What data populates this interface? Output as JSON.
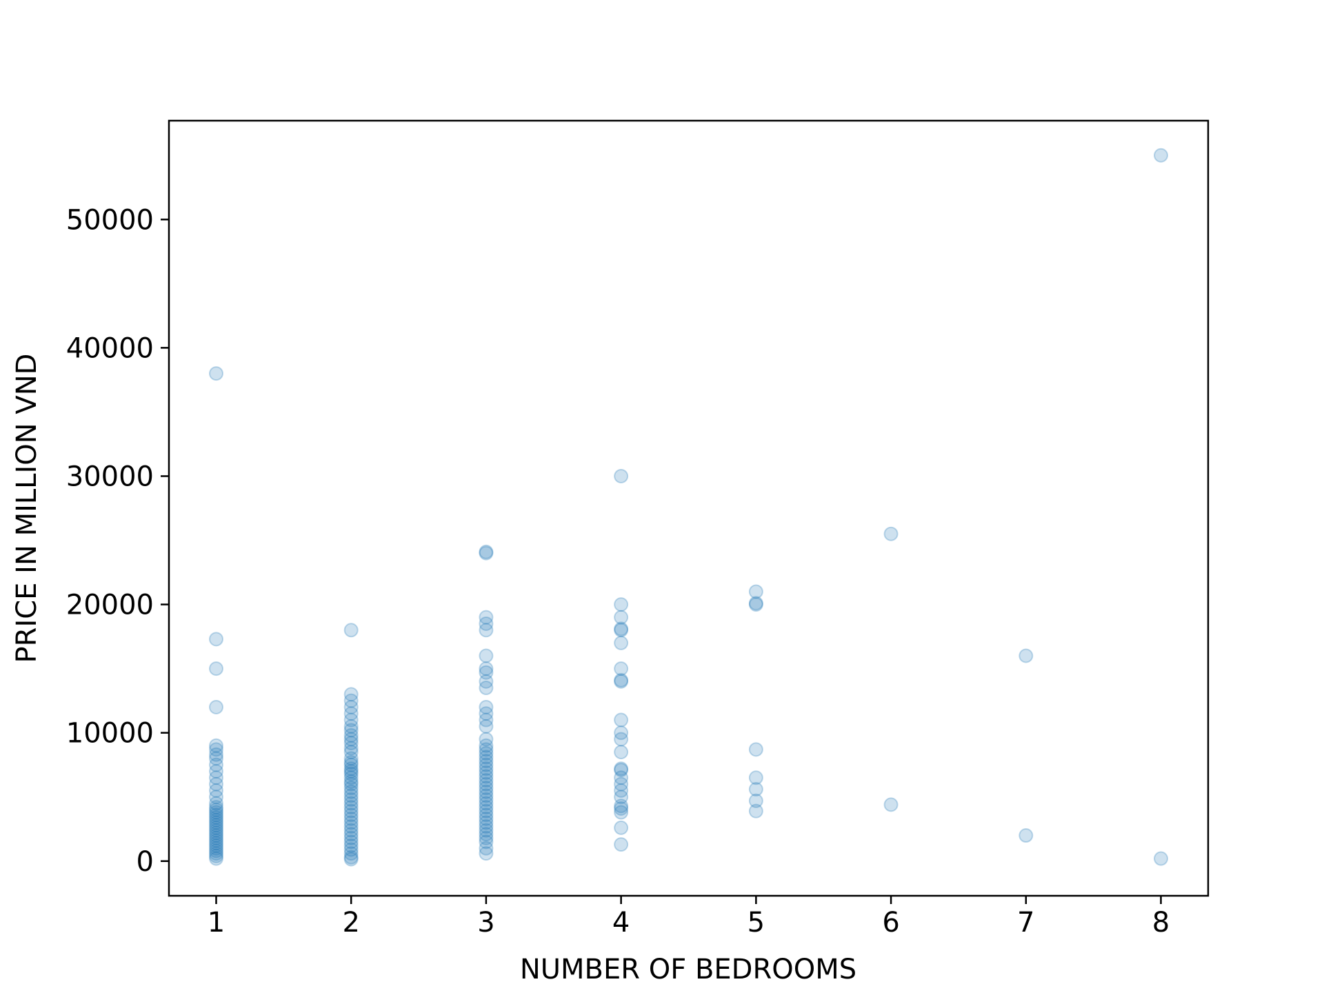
{
  "chart_data": {
    "type": "scatter",
    "title": "",
    "xlabel": "NUMBER OF BEDROOMS",
    "ylabel": "PRICE IN MILLION VND",
    "xlim": [
      0.65,
      8.35
    ],
    "ylim": [
      -2700,
      57700
    ],
    "x_ticks": [
      1,
      2,
      3,
      4,
      5,
      6,
      7,
      8
    ],
    "y_ticks": [
      0,
      10000,
      20000,
      30000,
      40000,
      50000
    ],
    "grid": false,
    "legend": "none",
    "marker_color": "#1f77b4",
    "marker_alpha": 0.22,
    "points": [
      {
        "x": 1,
        "y": [
          38000,
          17300,
          15000,
          12000,
          9000,
          8700,
          8300,
          8000,
          7500,
          7000,
          6500,
          6000,
          5500,
          5000,
          4500,
          4200,
          4000,
          3800,
          3600,
          3400,
          3200,
          3000,
          2800,
          2600,
          2400,
          2200,
          2000,
          1800,
          1600,
          1400,
          1200,
          1000,
          800,
          600,
          400,
          200
        ]
      },
      {
        "x": 2,
        "y": [
          18000,
          13000,
          12500,
          12000,
          11500,
          11000,
          10500,
          10200,
          9800,
          9500,
          9200,
          8800,
          8500,
          8000,
          7700,
          7500,
          7200,
          7000,
          6800,
          6500,
          6200,
          6000,
          5700,
          5400,
          5100,
          4800,
          4500,
          4200,
          3900,
          3600,
          3300,
          3000,
          2700,
          2400,
          2100,
          1800,
          1500,
          1200,
          900,
          600,
          300,
          150
        ]
      },
      {
        "x": 3,
        "y": [
          24100,
          24000,
          19000,
          18500,
          18000,
          16000,
          15000,
          14700,
          14000,
          13500,
          12000,
          11500,
          11000,
          10500,
          9500,
          9000,
          8700,
          8400,
          8100,
          7800,
          7500,
          7200,
          6900,
          6600,
          6300,
          6000,
          5700,
          5400,
          5100,
          4800,
          4500,
          4200,
          3900,
          3600,
          3300,
          3000,
          2700,
          2400,
          2100,
          1800,
          1500,
          1000,
          600
        ]
      },
      {
        "x": 4,
        "y": [
          30000,
          20000,
          19000,
          18100,
          18000,
          17000,
          15000,
          14100,
          14000,
          11000,
          10000,
          9500,
          8500,
          7200,
          7100,
          6500,
          6000,
          5500,
          5000,
          4300,
          4100,
          3800,
          2600,
          1300
        ]
      },
      {
        "x": 5,
        "y": [
          21000,
          20100,
          20000,
          8700,
          6500,
          5600,
          4700,
          3900
        ]
      },
      {
        "x": 6,
        "y": [
          25500,
          4400
        ]
      },
      {
        "x": 7,
        "y": [
          16000,
          2000
        ]
      },
      {
        "x": 8,
        "y": [
          55000,
          200
        ]
      }
    ]
  }
}
